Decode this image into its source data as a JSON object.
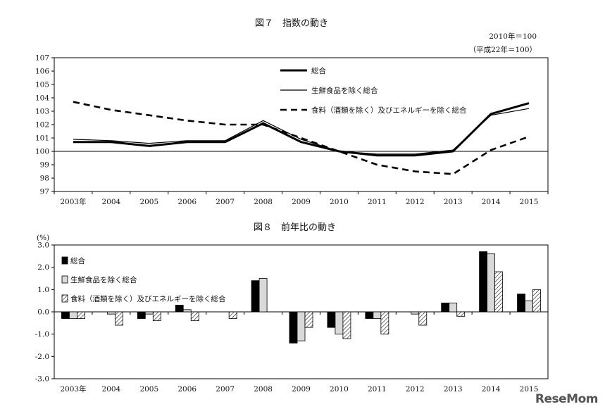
{
  "watermark": "ReseMom",
  "chart_data": [
    {
      "type": "line",
      "title": "図７　指数の動き",
      "note_lines": [
        "2010年＝100",
        "（平成22年＝100）"
      ],
      "categories": [
        "2003年",
        "2004",
        "2005",
        "2006",
        "2007",
        "2008",
        "2009",
        "2010",
        "2011",
        "2012",
        "2013",
        "2014",
        "2015"
      ],
      "ylim": [
        97,
        107
      ],
      "yticks": [
        "97",
        "98",
        "99",
        "100",
        "101",
        "102",
        "103",
        "104",
        "105",
        "106",
        "107"
      ],
      "reference_line": 100,
      "legend_position": "top-right",
      "series": [
        {
          "name": "総合",
          "style": "thick",
          "color": "#000000",
          "values": [
            100.7,
            100.7,
            100.4,
            100.7,
            100.7,
            102.1,
            100.7,
            100.0,
            99.7,
            99.7,
            100.0,
            102.8,
            103.6
          ]
        },
        {
          "name": "生鮮食品を除く総合",
          "style": "thin",
          "color": "#000000",
          "values": [
            100.9,
            100.8,
            100.6,
            100.8,
            100.8,
            102.3,
            100.9,
            100.0,
            99.8,
            99.8,
            100.1,
            102.7,
            103.2
          ]
        },
        {
          "name": "食料（酒類を除く）及びエネルギーを除く総合",
          "style": "dashed",
          "color": "#000000",
          "values": [
            103.7,
            103.1,
            102.7,
            102.3,
            102.0,
            102.0,
            101.0,
            100.0,
            99.0,
            98.5,
            98.3,
            100.1,
            101.1
          ]
        }
      ]
    },
    {
      "type": "bar",
      "title": "図８　前年比の動き",
      "ylabel": "(%)",
      "categories": [
        "2003年",
        "2004",
        "2005",
        "2006",
        "2007",
        "2008",
        "2009",
        "2010",
        "2011",
        "2012",
        "2013",
        "2014",
        "2015"
      ],
      "ylim": [
        -3.0,
        3.0
      ],
      "yticks": [
        "-3.0",
        "-2.0",
        "-1.0",
        "0.0",
        "1.0",
        "2.0",
        "3.0"
      ],
      "legend_position": "top-left",
      "series": [
        {
          "name": "総合",
          "fill": "solid-black",
          "values": [
            -0.3,
            0.0,
            -0.3,
            0.3,
            0.0,
            1.4,
            -1.4,
            -0.7,
            -0.3,
            0.0,
            0.4,
            2.7,
            0.8
          ]
        },
        {
          "name": "生鮮食品を除く総合",
          "fill": "light-gray",
          "values": [
            -0.3,
            -0.1,
            -0.1,
            0.1,
            0.0,
            1.5,
            -1.3,
            -1.0,
            -0.3,
            -0.1,
            0.4,
            2.6,
            0.5
          ]
        },
        {
          "name": "食料（酒類を除く）及びエネルギーを除く総合",
          "fill": "hatched",
          "values": [
            -0.3,
            -0.6,
            -0.4,
            -0.4,
            -0.3,
            0.0,
            -0.7,
            -1.2,
            -1.0,
            -0.6,
            -0.2,
            1.8,
            1.0
          ]
        }
      ]
    }
  ]
}
